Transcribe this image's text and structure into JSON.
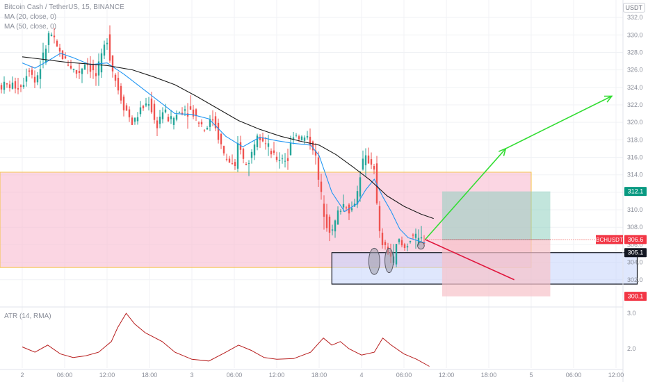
{
  "legend": {
    "title": "Bitcoin Cash / TetherUS, 15, BINANCE",
    "ma20": "MA (20, close, 0)",
    "ma50": "MA (50, close, 0)",
    "atr": "ATR (14, RMA)"
  },
  "currency": "USDT",
  "colors": {
    "up": "#26a69a",
    "down": "#ef5350",
    "ma20": "#2196f3",
    "ma50": "#1a1a1a",
    "atr": "#b71c1c",
    "zone_fill": "#f8bbd0",
    "zone_border": "#f5c242",
    "blue_zone": "#c5d4fb",
    "target": "#8fd0c0",
    "stop": "#f7c2c9",
    "arrow_up": "#33dd33",
    "arrow_down": "#e0163d"
  },
  "chart_data": {
    "type": "candlestick",
    "symbol": "BCHUSDT",
    "interval": "15",
    "ylim": [
      299.2,
      333.2
    ],
    "y_ticks": [
      "332.0",
      "330.0",
      "328.0",
      "326.0",
      "324.0",
      "322.0",
      "320.0",
      "318.0",
      "316.0",
      "314.0",
      "312.0",
      "310.0",
      "308.0",
      "306.0",
      "304.0",
      "302.0"
    ],
    "x_labels": [
      "2",
      "06:00",
      "12:00",
      "18:00",
      "3",
      "06:00",
      "12:00",
      "18:00",
      "4",
      "06:00",
      "12:00",
      "18:00",
      "5",
      "06:00",
      "12:00"
    ],
    "x_label_slots": [
      0,
      1,
      2,
      3,
      4,
      5,
      6,
      7,
      8,
      9,
      10,
      11,
      12,
      13,
      14
    ],
    "last_bar_slot": 9.5,
    "close_path": [
      [
        0,
        324.2
      ],
      [
        0.15,
        326.5
      ],
      [
        0.3,
        324.6
      ],
      [
        0.5,
        327.5
      ],
      [
        0.65,
        330.5
      ],
      [
        0.8,
        328.5
      ],
      [
        1.0,
        327.2
      ],
      [
        1.3,
        325.5
      ],
      [
        1.5,
        327.0
      ],
      [
        1.75,
        325.2
      ],
      [
        2.0,
        329.8
      ],
      [
        2.1,
        326.5
      ],
      [
        2.25,
        324.0
      ],
      [
        2.35,
        322.5
      ],
      [
        2.6,
        319.8
      ],
      [
        2.8,
        321.5
      ],
      [
        3.0,
        322.5
      ],
      [
        3.15,
        319.4
      ],
      [
        3.3,
        321.3
      ],
      [
        3.5,
        320.2
      ],
      [
        3.8,
        321.6
      ],
      [
        4.0,
        321.3
      ],
      [
        4.3,
        319.3
      ],
      [
        4.5,
        320.5
      ],
      [
        4.75,
        316.3
      ],
      [
        4.95,
        315.0
      ],
      [
        5.0,
        313.5
      ],
      [
        5.1,
        318.3
      ],
      [
        5.25,
        314.8
      ],
      [
        5.4,
        316.3
      ],
      [
        5.55,
        319.3
      ],
      [
        5.75,
        317.4
      ],
      [
        5.95,
        315.8
      ],
      [
        6.15,
        316.0
      ],
      [
        6.25,
        315.6
      ],
      [
        6.4,
        319.0
      ],
      [
        6.55,
        318.2
      ],
      [
        6.75,
        318.2
      ],
      [
        6.9,
        316.7
      ],
      [
        6.95,
        314.3
      ],
      [
        7.05,
        311.5
      ],
      [
        7.15,
        309.0
      ],
      [
        7.3,
        307.3
      ],
      [
        7.45,
        309.8
      ],
      [
        7.6,
        310.8
      ],
      [
        7.75,
        309.7
      ],
      [
        7.9,
        312.0
      ],
      [
        8.0,
        315.3
      ],
      [
        8.15,
        315.8
      ],
      [
        8.3,
        314.9
      ],
      [
        8.4,
        307.5
      ],
      [
        8.5,
        306.0
      ],
      [
        8.65,
        305.1
      ],
      [
        8.75,
        304.0
      ],
      [
        8.85,
        306.7
      ],
      [
        9.0,
        305.5
      ],
      [
        9.2,
        307.2
      ],
      [
        9.3,
        306.4
      ],
      [
        9.5,
        306.6
      ]
    ],
    "ma20_path": [
      [
        0,
        326.8
      ],
      [
        0.3,
        326.2
      ],
      [
        0.6,
        327.0
      ],
      [
        0.9,
        327.9
      ],
      [
        1.2,
        327.4
      ],
      [
        1.6,
        326.6
      ],
      [
        2.0,
        326.8
      ],
      [
        2.4,
        325.5
      ],
      [
        2.8,
        324.0
      ],
      [
        3.2,
        322.5
      ],
      [
        3.6,
        321.0
      ],
      [
        4.0,
        320.9
      ],
      [
        4.4,
        320.4
      ],
      [
        4.8,
        318.4
      ],
      [
        5.2,
        317.2
      ],
      [
        5.6,
        318.3
      ],
      [
        6.0,
        317.9
      ],
      [
        6.4,
        317.6
      ],
      [
        6.8,
        317.4
      ],
      [
        7.0,
        316.2
      ],
      [
        7.3,
        312.0
      ],
      [
        7.6,
        309.8
      ],
      [
        7.9,
        310.7
      ],
      [
        8.1,
        312.3
      ],
      [
        8.3,
        313.5
      ],
      [
        8.5,
        311.5
      ],
      [
        8.7,
        309.8
      ],
      [
        8.9,
        307.8
      ],
      [
        9.1,
        306.8
      ],
      [
        9.5,
        306.2
      ]
    ],
    "ma50_path": [
      [
        0,
        327.5
      ],
      [
        0.5,
        327.2
      ],
      [
        1.0,
        326.9
      ],
      [
        1.5,
        326.7
      ],
      [
        2.0,
        326.5
      ],
      [
        2.6,
        326.0
      ],
      [
        3.1,
        325.2
      ],
      [
        3.6,
        324.3
      ],
      [
        4.1,
        323.0
      ],
      [
        4.6,
        321.6
      ],
      [
        5.1,
        320.2
      ],
      [
        5.6,
        319.2
      ],
      [
        6.1,
        318.4
      ],
      [
        6.6,
        317.8
      ],
      [
        7.0,
        317.4
      ],
      [
        7.4,
        316.3
      ],
      [
        7.8,
        314.9
      ],
      [
        8.2,
        313.4
      ],
      [
        8.6,
        311.6
      ],
      [
        9.0,
        310.4
      ],
      [
        9.4,
        309.5
      ],
      [
        9.7,
        309.0
      ]
    ],
    "atr": {
      "ylim": [
        1.45,
        3.1
      ],
      "ticks": [
        "3.0",
        "2.0"
      ],
      "path": [
        [
          0,
          2.05
        ],
        [
          0.3,
          1.9
        ],
        [
          0.6,
          2.1
        ],
        [
          0.9,
          1.85
        ],
        [
          1.2,
          1.75
        ],
        [
          1.5,
          1.8
        ],
        [
          1.8,
          1.9
        ],
        [
          2.1,
          2.2
        ],
        [
          2.25,
          2.6
        ],
        [
          2.45,
          3.0
        ],
        [
          2.65,
          2.7
        ],
        [
          2.9,
          2.45
        ],
        [
          3.3,
          2.2
        ],
        [
          3.6,
          1.9
        ],
        [
          4.0,
          1.7
        ],
        [
          4.4,
          1.65
        ],
        [
          4.8,
          1.9
        ],
        [
          5.1,
          2.1
        ],
        [
          5.4,
          1.95
        ],
        [
          5.7,
          1.75
        ],
        [
          6.0,
          1.7
        ],
        [
          6.4,
          1.72
        ],
        [
          6.8,
          1.9
        ],
        [
          7.1,
          2.3
        ],
        [
          7.3,
          2.1
        ],
        [
          7.5,
          2.2
        ],
        [
          7.7,
          2.0
        ],
        [
          8.0,
          1.82
        ],
        [
          8.3,
          1.9
        ],
        [
          8.5,
          2.3
        ],
        [
          8.7,
          2.1
        ],
        [
          9.0,
          1.85
        ],
        [
          9.3,
          1.7
        ],
        [
          9.6,
          1.5
        ]
      ]
    },
    "zones": [
      {
        "name": "resistance-support-zone",
        "y1": 303.4,
        "y2": 314.3,
        "x1": 0,
        "x2": 12.0
      },
      {
        "name": "demand-box",
        "y1": 301.5,
        "y2": 305.1,
        "x1": 7.3,
        "x2": 14.5
      }
    ],
    "position": {
      "entry": 306.6,
      "target": 312.1,
      "stop": 300.1,
      "x1": 9.9,
      "x2": 12.45
    },
    "arrows": [
      {
        "name": "bullish-arrow",
        "from": [
          9.5,
          306.6
        ],
        "to": [
          11.4,
          317.0
        ]
      },
      {
        "name": "bullish-arrow-2",
        "from": [
          11.4,
          317.0
        ],
        "to": [
          13.9,
          323.0
        ]
      },
      {
        "name": "bearish-arrow",
        "from": [
          9.5,
          306.6
        ],
        "to": [
          11.6,
          302.0
        ]
      }
    ],
    "ellipses": [
      {
        "x": 8.3,
        "y": 304.1,
        "rx": 0.13,
        "ry": 1.5
      },
      {
        "x": 8.65,
        "y": 304.2,
        "rx": 0.1,
        "ry": 1.4
      },
      {
        "x": 9.4,
        "y": 305.9,
        "rx": 0.08,
        "ry": 0.4
      }
    ],
    "price_labels": [
      {
        "name": "target-price-label",
        "value": "312.1",
        "y": 312.1,
        "color": "#089981"
      },
      {
        "name": "symbol-price-label",
        "symbol": "BCHUSDT",
        "value": "306.6",
        "y": 306.6,
        "color": "#f23645"
      },
      {
        "name": "box-top-price-label",
        "value": "305.1",
        "y": 305.1,
        "color": "#131722"
      },
      {
        "name": "stop-price-label",
        "value": "300.1",
        "y": 300.1,
        "color": "#f23645"
      }
    ]
  }
}
